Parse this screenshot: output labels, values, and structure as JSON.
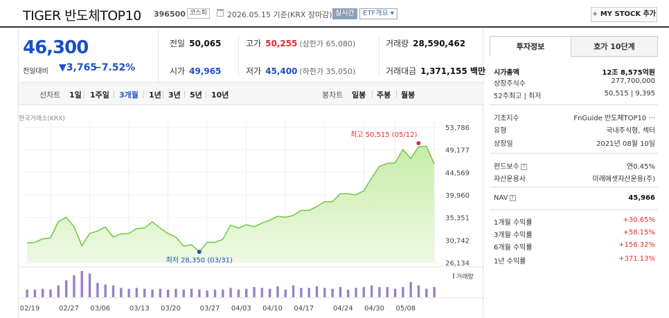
{
  "header": {
    "title": "TIGER 반도체TOP10",
    "code": "396500",
    "market": "코스피",
    "date": "2026.05.15 기준(KRX 장마감)",
    "realtime_label": "실시간",
    "etf_label": "ETF개요",
    "mystock_label": "MY STOCK 추가"
  },
  "price": {
    "current": "46,300",
    "change_label": "전일대비",
    "change": "▼3,765",
    "change_pct": "−7.52%"
  },
  "stats": {
    "prev_label": "전일",
    "prev": "50,065",
    "high_label": "고가",
    "high": "50,255",
    "high_sub": "(상한가 65,080)",
    "volume_label": "거래량",
    "volume": "28,590,462",
    "open_label": "시가",
    "open": "49,965",
    "low_label": "저가",
    "low": "45,400",
    "low_sub": "(하한가 35,050)",
    "amount_label": "거래대금",
    "amount": "1,371,155 백만"
  },
  "periods": {
    "line_label": "선차트",
    "line_items": [
      "1일",
      "1주일",
      "3개월",
      "1년",
      "3년",
      "5년",
      "10년"
    ],
    "active": "3개월",
    "candle_label": "봉차트",
    "candle_items": [
      "일봉",
      "주봉",
      "월봉"
    ]
  },
  "chart_data": {
    "type": "area",
    "source": "한국거래소(KRX)",
    "y_ticks": [
      "53,786",
      "49,177",
      "44,569",
      "39,960",
      "35,351",
      "30,742",
      "26,134"
    ],
    "ylim": [
      26134,
      53786
    ],
    "x_ticks": [
      "02/19",
      "02/27",
      "03/06",
      "03/13",
      "03/20",
      "03/27",
      "04/03",
      "04/10",
      "04/17",
      "04/24",
      "04/30",
      "05/08"
    ],
    "values": [
      30200,
      30300,
      31000,
      31200,
      34500,
      35400,
      33500,
      29600,
      32100,
      32600,
      33400,
      31400,
      32000,
      32100,
      33100,
      33200,
      34500,
      33200,
      32100,
      31400,
      29500,
      29800,
      28350,
      30300,
      30300,
      30900,
      33800,
      33200,
      33900,
      33500,
      34200,
      34800,
      35600,
      35400,
      35800,
      36800,
      36800,
      37600,
      38600,
      38600,
      40200,
      40200,
      40000,
      40800,
      43400,
      45800,
      46400,
      46500,
      49200,
      47400,
      49800,
      49900,
      46300
    ],
    "volume": [
      9,
      9,
      10,
      9,
      14,
      20,
      26,
      31,
      28,
      17,
      15,
      14,
      11,
      10,
      11,
      10,
      9,
      10,
      9,
      10,
      9,
      10,
      9,
      8,
      9,
      9,
      11,
      9,
      10,
      12,
      11,
      10,
      13,
      9,
      14,
      11,
      11,
      13,
      11,
      10,
      12,
      9,
      11,
      12,
      14,
      12,
      12,
      10,
      12,
      18,
      14,
      10,
      12
    ],
    "volume_label": "거래량",
    "max_label": "최고 50,515 (05/12)",
    "min_label": "최저 28,350 (03/31)",
    "max_value": 50515,
    "min_value": 28350,
    "max_index": 50,
    "min_index": 22,
    "colors": {
      "line": "#6cc840",
      "fill_top": "#c7eca9",
      "fill_bottom": "#eef9e3",
      "volume": "#9b7ec9",
      "max": "#e5282c",
      "min": "#1a4fc8"
    }
  },
  "invest": {
    "tab_info": "투자정보",
    "tab_quote": "호가 10단계",
    "rows": [
      {
        "k": "시가총액",
        "v": "12조 8,575억원"
      },
      {
        "k": "상장주식수",
        "v": "277,700,000"
      },
      {
        "k": "52주최고 | 최저",
        "v": "50,515 | 9,395"
      },
      {
        "k": "기초지수",
        "v": "FnGuide 반도체TOP10 ···"
      },
      {
        "k": "유형",
        "v": "국내주식형, 섹터"
      },
      {
        "k": "상장일",
        "v": "2021년 08월 10일"
      },
      {
        "k": "펀드보수",
        "v": "연0.45%"
      },
      {
        "k": "자산운용사",
        "v": "미래에셋자산운용(주)"
      },
      {
        "k": "NAV",
        "v": "45,966"
      },
      {
        "k": "1개월 수익률",
        "v": "+30.65%"
      },
      {
        "k": "3개월 수익률",
        "v": "+58.15%"
      },
      {
        "k": "6개월 수익률",
        "v": "+156.32%"
      },
      {
        "k": "1년 수익률",
        "v": "+371.13%"
      }
    ]
  }
}
